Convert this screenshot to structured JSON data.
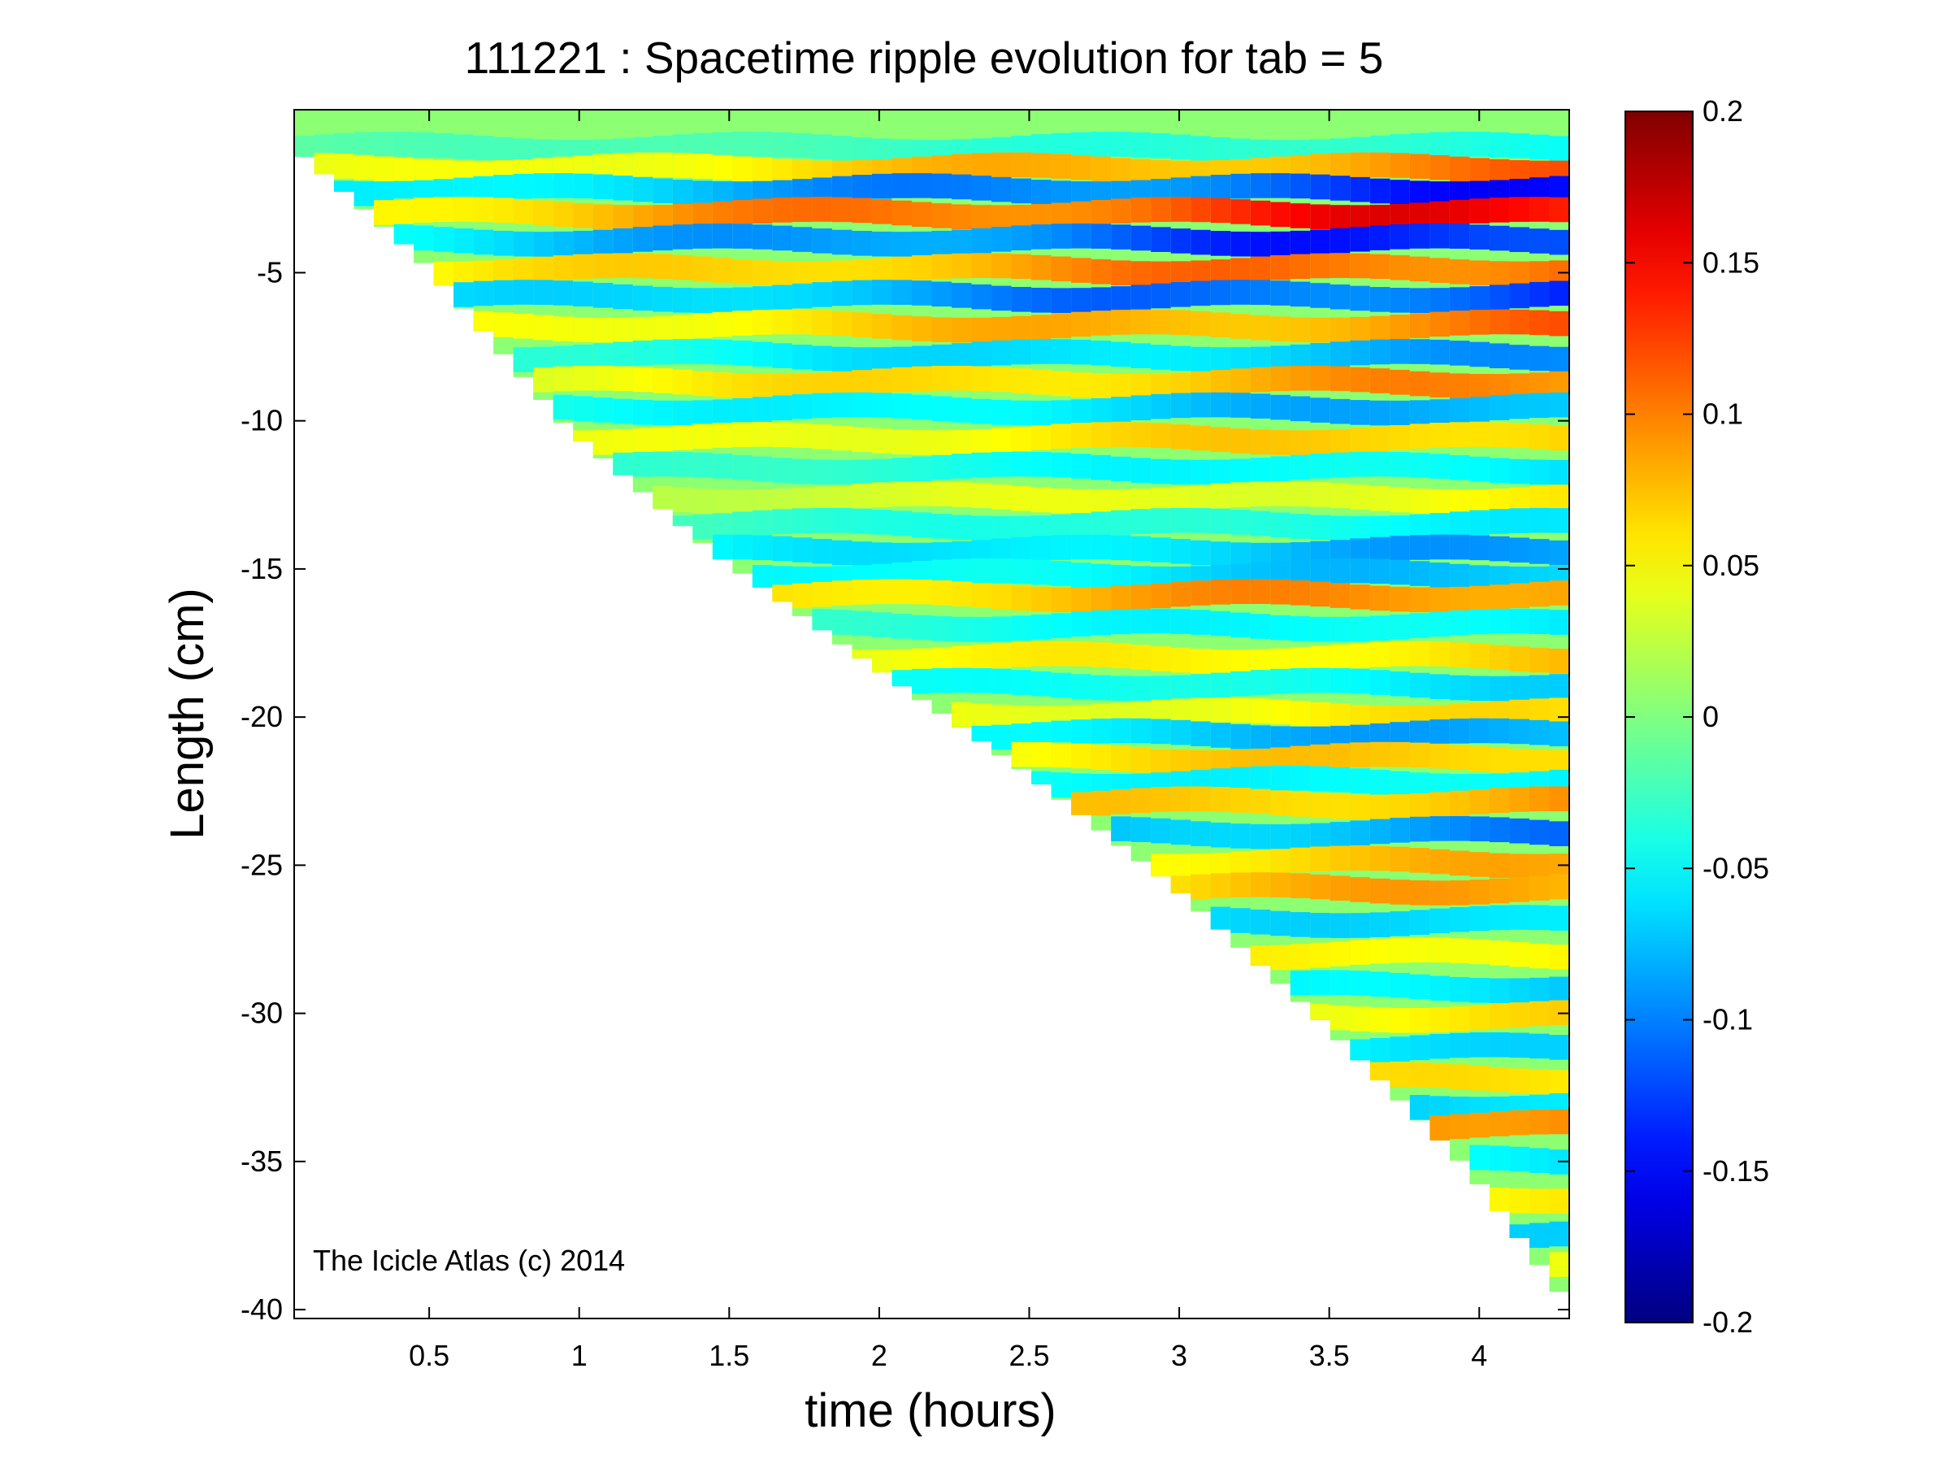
{
  "chart_data": {
    "type": "heatmap",
    "title": "111221 : Spacetime ripple evolution for tab = 5",
    "xlabel": "time (hours)",
    "ylabel": "Length (cm)",
    "xlim": [
      0.05,
      4.3
    ],
    "ylim": [
      -40.3,
      0.5
    ],
    "xticks": [
      0.5,
      1,
      1.5,
      2,
      2.5,
      3,
      3.5,
      4
    ],
    "xtick_labels": [
      "0.5",
      "1",
      "1.5",
      "2",
      "2.5",
      "3",
      "3.5",
      "4"
    ],
    "yticks": [
      -5,
      -10,
      -15,
      -20,
      -25,
      -30,
      -35,
      -40
    ],
    "ytick_labels": [
      "-5",
      "-10",
      "-15",
      "-20",
      "-25",
      "-30",
      "-35",
      "-40"
    ],
    "colorbar": {
      "colormap": "jet",
      "clim": [
        -0.2,
        0.2
      ],
      "ticks": [
        0.2,
        0.15,
        0.1,
        0.05,
        0,
        -0.05,
        -0.1,
        -0.15,
        -0.2
      ],
      "tick_labels": [
        "0.2",
        "0.15",
        "0.1",
        "0.05",
        "0",
        "-0.05",
        "-0.1",
        "-0.15",
        "-0.2"
      ]
    },
    "colors": [
      "#00008f",
      "#0000ff",
      "#00ffff",
      "#ffff00",
      "#ff0000",
      "#800000"
    ],
    "data_boundary": {
      "description_values": "icicle tip length (cm) vs time (hours); field is defined above this curve",
      "time_hours": [
        0.05,
        0.5,
        1.0,
        1.5,
        2.0,
        2.5,
        3.0,
        3.5,
        4.0,
        4.3
      ],
      "tip_length_cm": [
        -0.5,
        -4.5,
        -10.3,
        -14.6,
        -18.2,
        -21.7,
        -25.6,
        -30.2,
        -35.3,
        -39.4
      ]
    },
    "ripple_bands": [
      {
        "length_cm": -0.8,
        "amplitude": -0.05
      },
      {
        "length_cm": -1.5,
        "amplitude": 0.12
      },
      {
        "length_cm": -2.2,
        "amplitude": -0.16
      },
      {
        "length_cm": -3.0,
        "amplitude": 0.18
      },
      {
        "length_cm": -3.9,
        "amplitude": -0.17
      },
      {
        "length_cm": -4.9,
        "amplitude": 0.14
      },
      {
        "length_cm": -5.8,
        "amplitude": -0.15
      },
      {
        "length_cm": -6.8,
        "amplitude": 0.12
      },
      {
        "length_cm": -7.8,
        "amplitude": -0.1
      },
      {
        "length_cm": -8.7,
        "amplitude": 0.11
      },
      {
        "length_cm": -9.6,
        "amplitude": -0.1
      },
      {
        "length_cm": -10.6,
        "amplitude": 0.09
      },
      {
        "length_cm": -11.6,
        "amplitude": -0.07
      },
      {
        "length_cm": -12.6,
        "amplitude": 0.06
      },
      {
        "length_cm": -13.5,
        "amplitude": -0.06
      },
      {
        "length_cm": -14.4,
        "amplitude": -0.1
      },
      {
        "length_cm": -15.2,
        "amplitude": -0.09
      },
      {
        "length_cm": -15.9,
        "amplitude": 0.12
      },
      {
        "length_cm": -16.9,
        "amplitude": -0.07
      },
      {
        "length_cm": -18.0,
        "amplitude": 0.08
      },
      {
        "length_cm": -18.9,
        "amplitude": -0.07
      },
      {
        "length_cm": -19.9,
        "amplitude": 0.07
      },
      {
        "length_cm": -20.6,
        "amplitude": -0.1
      },
      {
        "length_cm": -21.4,
        "amplitude": 0.09
      },
      {
        "length_cm": -22.2,
        "amplitude": -0.07
      },
      {
        "length_cm": -22.9,
        "amplitude": 0.1
      },
      {
        "length_cm": -23.9,
        "amplitude": -0.11
      },
      {
        "length_cm": -24.9,
        "amplitude": 0.09
      },
      {
        "length_cm": -25.8,
        "amplitude": 0.1
      },
      {
        "length_cm": -26.9,
        "amplitude": -0.08
      },
      {
        "length_cm": -28.0,
        "amplitude": 0.07
      },
      {
        "length_cm": -29.1,
        "amplitude": -0.08
      },
      {
        "length_cm": -30.1,
        "amplitude": 0.07
      },
      {
        "length_cm": -31.2,
        "amplitude": -0.07
      },
      {
        "length_cm": -32.2,
        "amplitude": 0.07
      },
      {
        "length_cm": -33.1,
        "amplitude": -0.08
      },
      {
        "length_cm": -33.8,
        "amplitude": 0.13
      },
      {
        "length_cm": -35.0,
        "amplitude": -0.07
      },
      {
        "length_cm": -36.2,
        "amplitude": 0.06
      },
      {
        "length_cm": -37.5,
        "amplitude": -0.07
      },
      {
        "length_cm": -38.6,
        "amplitude": 0.05
      }
    ],
    "watermark": "The Icicle Atlas (c) 2014"
  }
}
